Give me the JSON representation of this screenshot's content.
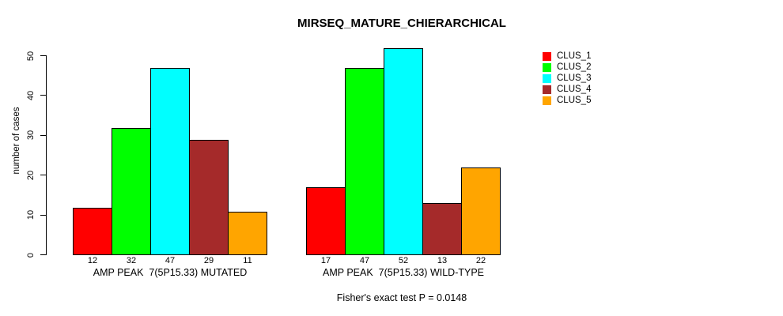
{
  "chart_data": {
    "type": "bar",
    "title": "MIRSEQ_MATURE_CHIERARCHICAL",
    "ylabel": "number of cases",
    "ylim": [
      0,
      50
    ],
    "yticks": [
      0,
      10,
      20,
      30,
      40,
      50
    ],
    "grid": false,
    "legend_position": "right",
    "series": [
      {
        "name": "CLUS_1",
        "color": "#FF0000"
      },
      {
        "name": "CLUS_2",
        "color": "#00FF00"
      },
      {
        "name": "CLUS_3",
        "color": "#00FFFF"
      },
      {
        "name": "CLUS_4",
        "color": "#A52A2A"
      },
      {
        "name": "CLUS_5",
        "color": "#FFA500"
      }
    ],
    "groups": [
      {
        "label": "AMP PEAK  7(5P15.33) MUTATED",
        "values": [
          12,
          32,
          47,
          29,
          11
        ]
      },
      {
        "label": "AMP PEAK  7(5P15.33) WILD-TYPE",
        "values": [
          17,
          47,
          52,
          13,
          22
        ]
      }
    ],
    "footnote": "Fisher's exact test P = 0.0148"
  }
}
